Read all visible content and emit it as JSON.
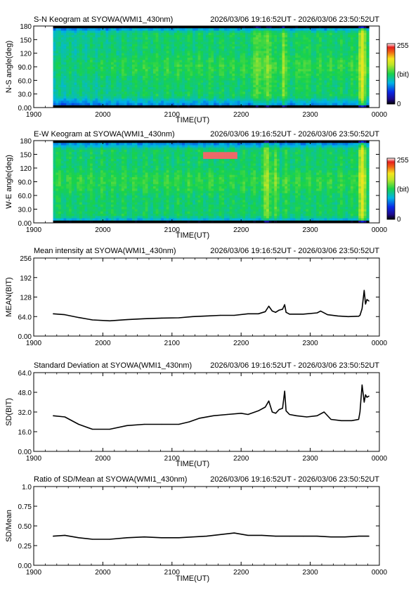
{
  "source_label": "SYOWA(WMI1_430nm)",
  "time_range": "2026/03/06 19:16:52UT - 2026/03/06 23:50:52UT",
  "colors": {
    "line": "#000000",
    "keogram_dark": "#000050",
    "keogram_green": "#19d24b",
    "keogram_yellow": "#f0e628",
    "keogram_red": "#e61e1e"
  },
  "chart_data": [
    {
      "type": "heatmap",
      "title": "S-N Keogram at SYOWA(WMI1_430nm)",
      "time_range": "2026/03/06 19:16:52UT - 2026/03/06 23:50:52UT",
      "xlabel": "TIME(UT)",
      "ylabel": "N-S angle(deg)",
      "x_ticks": [
        "1900",
        "2000",
        "2100",
        "2200",
        "2300",
        "0000"
      ],
      "y_ticks": [
        "0.00",
        "30.0",
        "60.0",
        "90.0",
        "120",
        "150",
        "180"
      ],
      "ylim": [
        0,
        180
      ],
      "colorbar": {
        "min": "0",
        "max": "255",
        "unit": "(bit)"
      },
      "xlim_hours": [
        19.0,
        24.0
      ],
      "data_start_hour": 19.28,
      "data_end_hour": 23.85
    },
    {
      "type": "heatmap",
      "title": "E-W Keogram at SYOWA(WMI1_430nm)",
      "time_range": "2026/03/06 19:16:52UT - 2026/03/06 23:50:52UT",
      "xlabel": "TIME(UT)",
      "ylabel": "W-E angle(deg)",
      "x_ticks": [
        "1900",
        "2000",
        "2100",
        "2200",
        "2300",
        "0000"
      ],
      "y_ticks": [
        "0.00",
        "30.0",
        "60.0",
        "90.0",
        "120",
        "150",
        "180"
      ],
      "ylim": [
        0,
        180
      ],
      "colorbar": {
        "min": "0",
        "max": "255",
        "unit": "(bit)"
      },
      "xlim_hours": [
        19.0,
        24.0
      ],
      "data_start_hour": 19.28,
      "data_end_hour": 23.85
    },
    {
      "type": "line",
      "title": "Mean intensity at SYOWA(WMI1_430nm)",
      "time_range": "2026/03/06 19:16:52UT - 2026/03/06 23:50:52UT",
      "xlabel": "",
      "ylabel": "MEAN(BIT)",
      "x_ticks": [
        "1900",
        "2000",
        "2100",
        "2200",
        "2300",
        "0000"
      ],
      "y_ticks": [
        "0.00",
        "64.0",
        "128",
        "192",
        "256"
      ],
      "ylim": [
        0,
        256
      ],
      "xlim_hours": [
        19.0,
        24.0
      ],
      "x": [
        19.28,
        19.45,
        19.65,
        19.85,
        20.1,
        20.35,
        20.6,
        20.85,
        21.1,
        21.3,
        21.5,
        21.7,
        21.9,
        22.1,
        22.25,
        22.35,
        22.4,
        22.45,
        22.5,
        22.55,
        22.6,
        22.63,
        22.65,
        22.7,
        22.75,
        22.9,
        23.1,
        23.15,
        23.25,
        23.4,
        23.55,
        23.7,
        23.72,
        23.75,
        23.78,
        23.8,
        23.82,
        23.85
      ],
      "y": [
        73,
        70,
        61,
        53,
        50,
        54,
        57,
        59,
        60,
        64,
        66,
        68,
        68,
        73,
        73,
        80,
        98,
        82,
        78,
        85,
        88,
        103,
        78,
        72,
        72,
        72,
        76,
        82,
        70,
        66,
        64,
        65,
        68,
        90,
        150,
        105,
        120,
        115
      ]
    },
    {
      "type": "line",
      "title": "Standard Deviation at SYOWA(WMI1_430nm)",
      "time_range": "2026/03/06 19:16:52UT - 2026/03/06 23:50:52UT",
      "xlabel": "TIME(UT)",
      "ylabel": "SD(BIT)",
      "x_ticks": [
        "1900",
        "2000",
        "2100",
        "2200",
        "2300",
        "0000"
      ],
      "y_ticks": [
        "0.00",
        "16.0",
        "32.0",
        "48.0",
        "64.0"
      ],
      "ylim": [
        0,
        64
      ],
      "xlim_hours": [
        19.0,
        24.0
      ],
      "x": [
        19.28,
        19.45,
        19.65,
        19.85,
        20.1,
        20.35,
        20.6,
        20.85,
        21.1,
        21.25,
        21.4,
        21.6,
        21.8,
        22.0,
        22.1,
        22.25,
        22.35,
        22.4,
        22.45,
        22.5,
        22.55,
        22.6,
        22.63,
        22.65,
        22.7,
        22.8,
        22.95,
        23.1,
        23.2,
        23.3,
        23.45,
        23.6,
        23.7,
        23.72,
        23.75,
        23.78,
        23.8,
        23.82,
        23.85
      ],
      "y": [
        29,
        28,
        22,
        18,
        18,
        21,
        22,
        22,
        22,
        24,
        27,
        29,
        30,
        31,
        30,
        33,
        36,
        41,
        32,
        31,
        34,
        35,
        49,
        33,
        30,
        29,
        28,
        29,
        32,
        26,
        25,
        25,
        26,
        32,
        54,
        40,
        46,
        44,
        45
      ]
    },
    {
      "type": "line",
      "title": "Ratio of SD/Mean at SYOWA(WMI1_430nm)",
      "time_range": "2026/03/06 19:16:52UT - 2026/03/06 23:50:52UT",
      "xlabel": "TIME(UT)",
      "ylabel": "SD/Mean",
      "x_ticks": [
        "1900",
        "2000",
        "2100",
        "2200",
        "2300",
        "0000"
      ],
      "y_ticks": [
        "0.00",
        "0.25",
        "0.50",
        "0.75",
        "1.0"
      ],
      "ylim": [
        0,
        1
      ],
      "xlim_hours": [
        19.0,
        24.0
      ],
      "x": [
        19.28,
        19.45,
        19.65,
        19.85,
        20.1,
        20.35,
        20.6,
        20.85,
        21.1,
        21.3,
        21.5,
        21.7,
        21.9,
        22.1,
        22.3,
        22.5,
        22.7,
        22.9,
        23.1,
        23.3,
        23.5,
        23.7,
        23.85
      ],
      "y": [
        0.37,
        0.38,
        0.35,
        0.33,
        0.33,
        0.35,
        0.36,
        0.35,
        0.35,
        0.36,
        0.37,
        0.39,
        0.41,
        0.38,
        0.38,
        0.37,
        0.37,
        0.37,
        0.37,
        0.36,
        0.36,
        0.37,
        0.37
      ]
    }
  ]
}
